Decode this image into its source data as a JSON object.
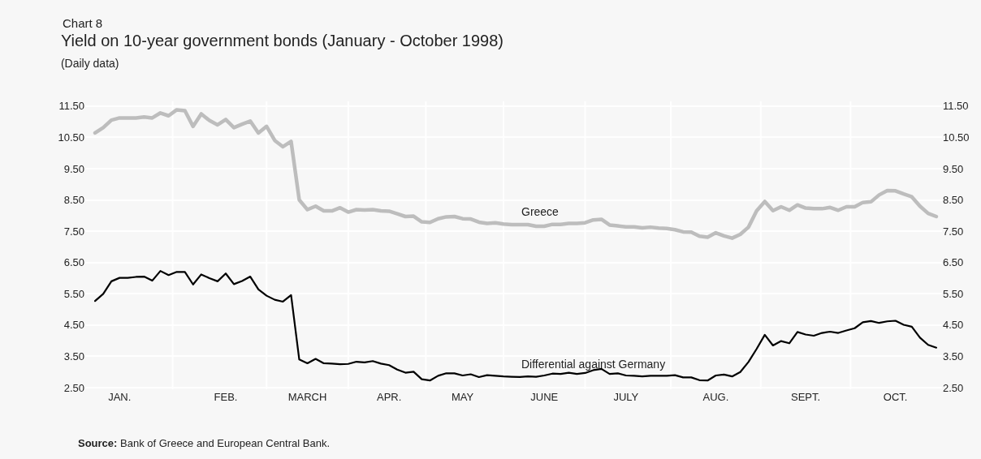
{
  "chart_data": {
    "type": "line",
    "title": "Yield on 10-year government bonds (January - October 1998)",
    "subtitle": "(Daily data)",
    "annotations": [
      "Chart 8",
      "Source: Bank of Greece and European Central Bank."
    ],
    "categories": [
      null,
      null,
      null,
      "JAN.",
      null,
      null,
      null,
      null,
      null,
      null,
      null,
      null,
      null,
      null,
      null,
      null,
      "FEB.",
      null,
      null,
      null,
      null,
      null,
      null,
      null,
      null,
      null,
      "MARCH",
      null,
      null,
      null,
      null,
      null,
      null,
      null,
      null,
      null,
      "APR.",
      null,
      null,
      null,
      null,
      null,
      null,
      null,
      null,
      "MAY",
      null,
      null,
      null,
      null,
      null,
      null,
      null,
      null,
      null,
      "JUNE",
      null,
      null,
      null,
      null,
      null,
      null,
      null,
      null,
      null,
      "JULY",
      null,
      null,
      null,
      null,
      null,
      null,
      null,
      null,
      null,
      null,
      "AUG.",
      null,
      null,
      null,
      null,
      null,
      null,
      null,
      null,
      null,
      null,
      "SEPT.",
      null,
      null,
      null,
      null,
      null,
      null,
      null,
      null,
      null,
      null,
      "OCT.",
      null,
      null,
      null,
      null,
      null
    ],
    "ylim": [
      2.45,
      11.65
    ],
    "yticks": [
      {
        "value": 2.5,
        "label": "2.50"
      },
      {
        "value": 3.5,
        "label": "3.50"
      },
      {
        "value": 4.5,
        "label": "4.50"
      },
      {
        "value": 5.5,
        "label": "5.50"
      },
      {
        "value": 6.5,
        "label": "6.50"
      },
      {
        "value": 7.5,
        "label": "7.50"
      },
      {
        "value": 8.5,
        "label": "8.50"
      },
      {
        "value": 9.5,
        "label": "9.50"
      },
      {
        "value": 10.5,
        "label": "10.50"
      },
      {
        "value": 11.5,
        "label": "11.50"
      }
    ],
    "y2lim": [
      2.45,
      11.65
    ],
    "y2ticks": [
      {
        "value": 2.5,
        "label": "2.50"
      },
      {
        "value": 3.5,
        "label": "3.50"
      },
      {
        "value": 4.5,
        "label": "4.50"
      },
      {
        "value": 5.5,
        "label": "5.50"
      },
      {
        "value": 6.5,
        "label": "6.50"
      },
      {
        "value": 7.5,
        "label": "7.50"
      },
      {
        "value": 8.5,
        "label": "8.50"
      },
      {
        "value": 9.5,
        "label": "9.50"
      },
      {
        "value": 10.5,
        "label": "10.50"
      },
      {
        "value": 11.5,
        "label": "11.50"
      }
    ],
    "grid": true,
    "series": [
      {
        "name": "Greece",
        "color": "#bdbdbd",
        "values": [
          10.64,
          10.81,
          11.05,
          11.12,
          11.12,
          11.12,
          11.15,
          11.12,
          11.28,
          11.19,
          11.38,
          11.35,
          10.85,
          11.25,
          11.04,
          10.9,
          11.07,
          10.81,
          10.92,
          11.02,
          10.64,
          10.85,
          10.4,
          10.2,
          10.37,
          8.5,
          8.19,
          8.3,
          8.15,
          8.15,
          8.25,
          8.11,
          8.19,
          8.18,
          8.19,
          8.15,
          8.14,
          8.06,
          7.97,
          7.98,
          7.8,
          7.78,
          7.9,
          7.96,
          7.97,
          7.9,
          7.89,
          7.79,
          7.75,
          7.77,
          7.73,
          7.71,
          7.71,
          7.71,
          7.66,
          7.66,
          7.72,
          7.72,
          7.75,
          7.75,
          7.77,
          7.86,
          7.88,
          7.7,
          7.67,
          7.64,
          7.64,
          7.61,
          7.63,
          7.6,
          7.59,
          7.55,
          7.48,
          7.47,
          7.34,
          7.31,
          7.45,
          7.35,
          7.28,
          7.4,
          7.63,
          8.15,
          8.45,
          8.16,
          8.28,
          8.17,
          8.34,
          8.24,
          8.22,
          8.22,
          8.26,
          8.17,
          8.28,
          8.28,
          8.42,
          8.44,
          8.66,
          8.8,
          8.79,
          8.69,
          8.6,
          8.3,
          8.07,
          7.97
        ]
      },
      {
        "name": "Differential against Germany",
        "color": "#000000",
        "values": [
          5.27,
          5.5,
          5.9,
          6.01,
          6.01,
          6.04,
          6.05,
          5.92,
          6.23,
          6.1,
          6.2,
          6.2,
          5.8,
          6.12,
          6.0,
          5.9,
          6.15,
          5.81,
          5.91,
          6.05,
          5.64,
          5.44,
          5.31,
          5.25,
          5.46,
          3.4,
          3.28,
          3.42,
          3.28,
          3.27,
          3.25,
          3.26,
          3.33,
          3.31,
          3.35,
          3.27,
          3.22,
          3.08,
          2.98,
          3.01,
          2.77,
          2.73,
          2.88,
          2.96,
          2.96,
          2.89,
          2.93,
          2.84,
          2.9,
          2.88,
          2.86,
          2.85,
          2.84,
          2.86,
          2.85,
          2.89,
          2.95,
          2.94,
          2.98,
          2.94,
          2.97,
          3.06,
          3.1,
          2.94,
          2.96,
          2.89,
          2.88,
          2.86,
          2.88,
          2.88,
          2.88,
          2.9,
          2.83,
          2.83,
          2.74,
          2.73,
          2.89,
          2.92,
          2.86,
          3.0,
          3.32,
          3.74,
          4.19,
          3.85,
          3.99,
          3.92,
          4.28,
          4.2,
          4.16,
          4.25,
          4.29,
          4.25,
          4.33,
          4.4,
          4.59,
          4.63,
          4.57,
          4.62,
          4.64,
          4.51,
          4.45,
          4.1,
          3.87,
          3.78
        ]
      }
    ]
  }
}
